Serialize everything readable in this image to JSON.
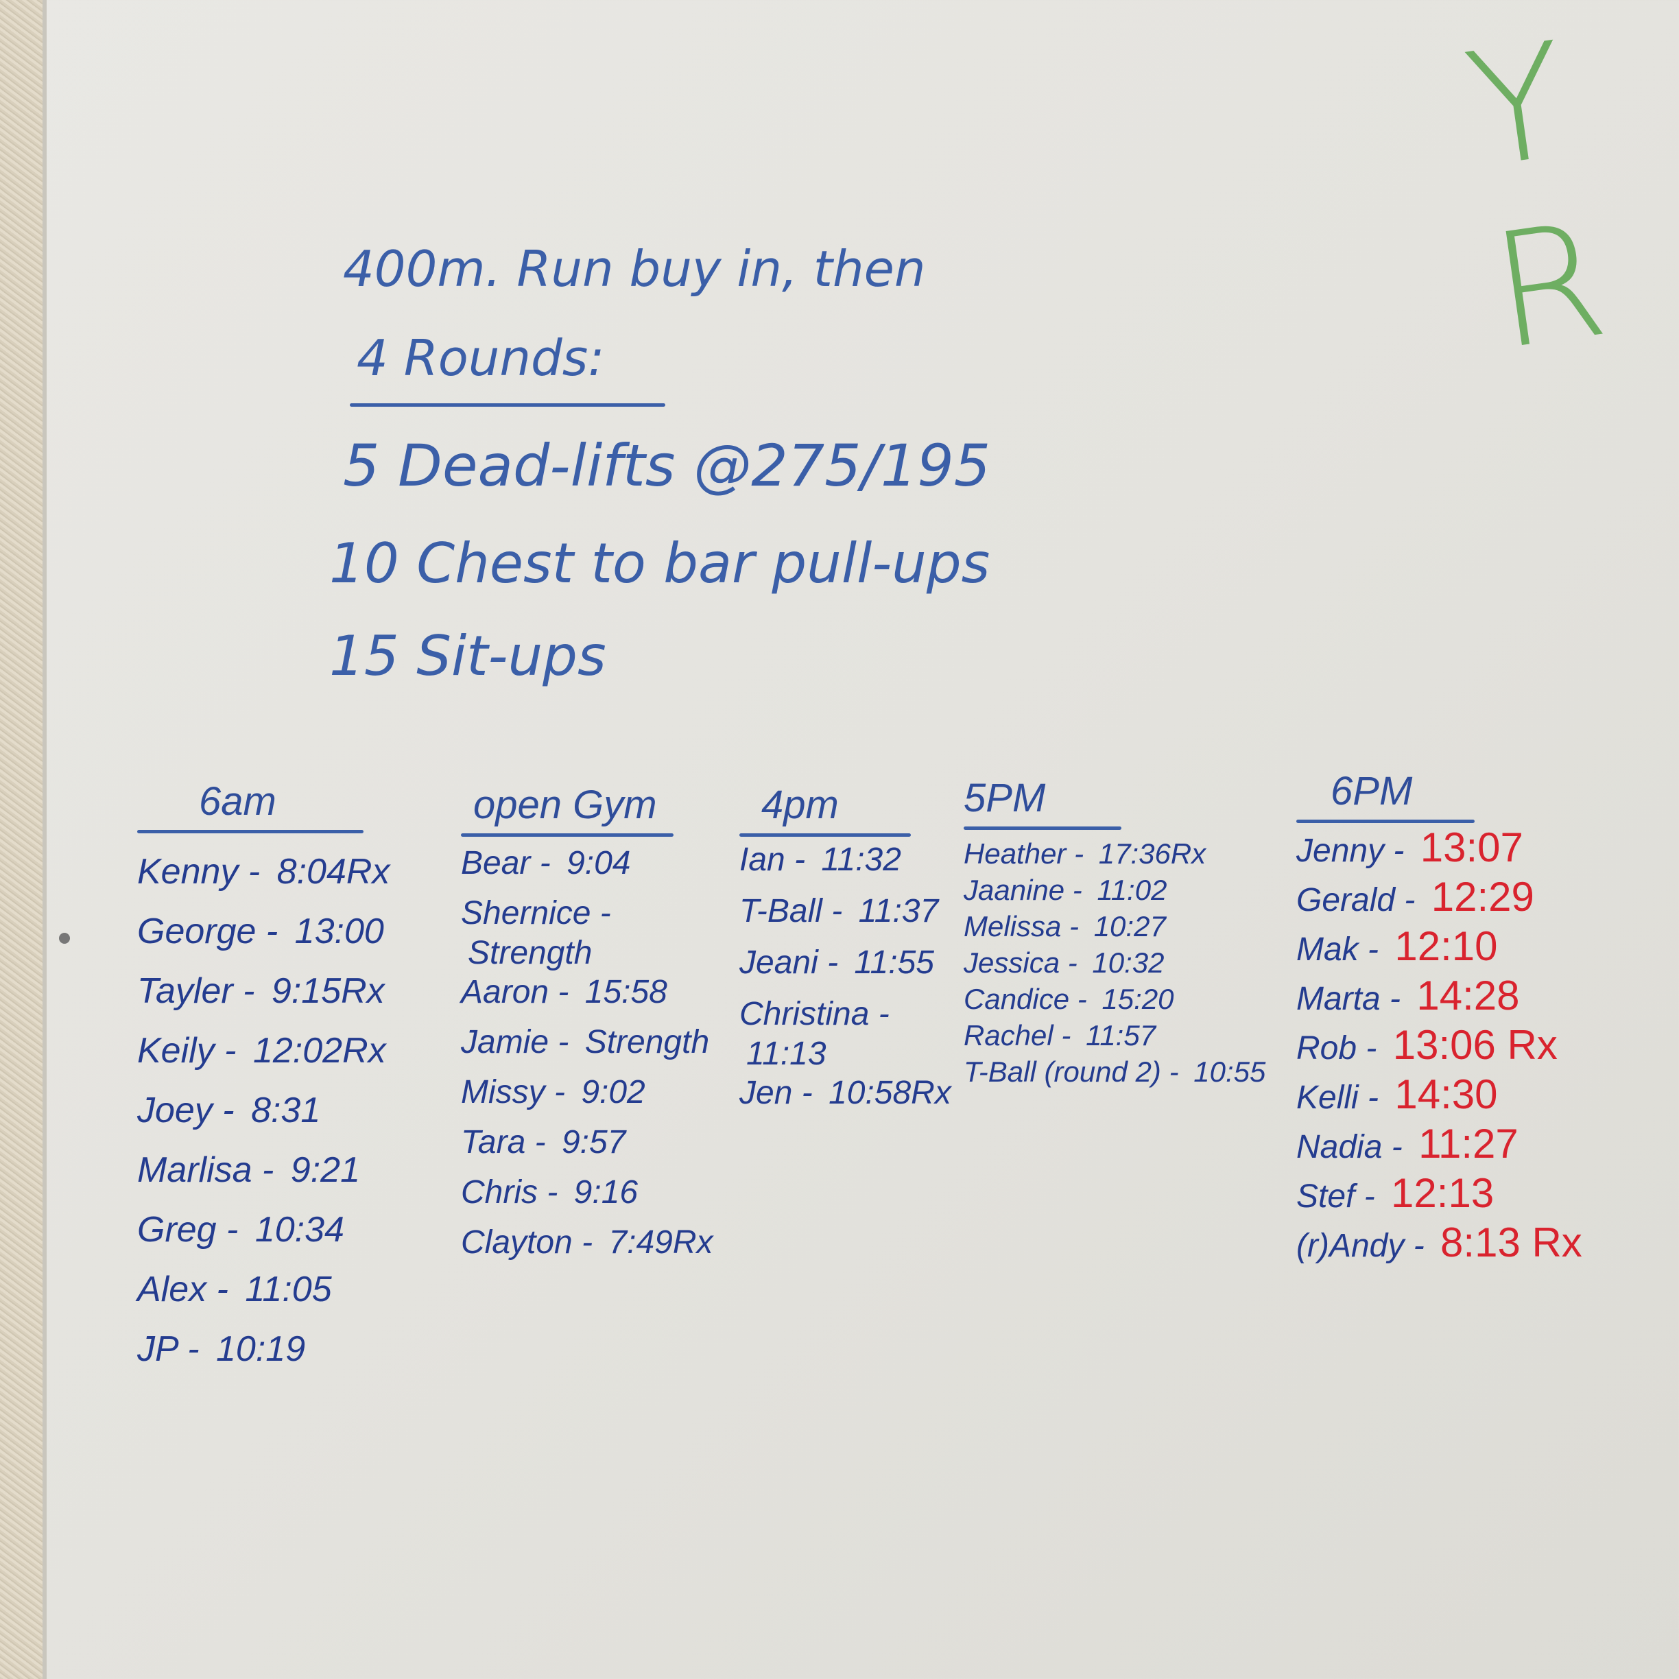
{
  "board_corner_text": "Y R",
  "workout": {
    "lines": [
      "400m. Run buy in, then",
      "4 Rounds:",
      "5 Dead-lifts @275/195",
      "10 Chest to bar pull-ups",
      "15 Sit-ups"
    ]
  },
  "colors": {
    "marker_blue": "#243c8f",
    "marker_red": "#d9232e",
    "marker_green": "#5aa54d"
  },
  "columns": [
    {
      "header": "6am",
      "entries": [
        {
          "name": "Kenny -",
          "time": "8:04Rx"
        },
        {
          "name": "George -",
          "time": "13:00"
        },
        {
          "name": "Tayler -",
          "time": "9:15Rx"
        },
        {
          "name": "Keily -",
          "time": "12:02Rx"
        },
        {
          "name": "Joey -",
          "time": "8:31"
        },
        {
          "name": "Marlisa -",
          "time": "9:21"
        },
        {
          "name": "Greg -",
          "time": "10:34"
        },
        {
          "name": "Alex -",
          "time": "11:05"
        },
        {
          "name": "JP -",
          "time": "10:19"
        }
      ]
    },
    {
      "header": "open Gym",
      "entries": [
        {
          "name": "Bear -",
          "time": "9:04"
        },
        {
          "name": "Shernice -",
          "time": "Strength"
        },
        {
          "name": "Aaron -",
          "time": "15:58"
        },
        {
          "name": "Jamie -",
          "time": "Strength"
        },
        {
          "name": "Missy -",
          "time": "9:02"
        },
        {
          "name": "Tara -",
          "time": "9:57"
        },
        {
          "name": "Chris -",
          "time": "9:16"
        },
        {
          "name": "Clayton -",
          "time": "7:49Rx"
        }
      ]
    },
    {
      "header": "4pm",
      "entries": [
        {
          "name": "Ian -",
          "time": "11:32"
        },
        {
          "name": "T-Ball -",
          "time": "11:37"
        },
        {
          "name": "Jeani -",
          "time": "11:55"
        },
        {
          "name": "Christina -",
          "time": "11:13"
        },
        {
          "name": "Jen -",
          "time": "10:58Rx"
        }
      ]
    },
    {
      "header": "5PM",
      "entries": [
        {
          "name": "Heather -",
          "time": "17:36Rx"
        },
        {
          "name": "Jaanine -",
          "time": "11:02"
        },
        {
          "name": "Melissa -",
          "time": "10:27"
        },
        {
          "name": "Jessica -",
          "time": "10:32"
        },
        {
          "name": "Candice -",
          "time": "15:20"
        },
        {
          "name": "Rachel -",
          "time": "11:57"
        },
        {
          "name": "T-Ball (round 2) -",
          "time": "10:55"
        }
      ]
    },
    {
      "header": "6PM",
      "entries": [
        {
          "name": "Jenny -",
          "time": "13:07"
        },
        {
          "name": "Gerald -",
          "time": "12:29"
        },
        {
          "name": "Mak -",
          "time": "12:10"
        },
        {
          "name": "Marta -",
          "time": "14:28"
        },
        {
          "name": "Rob -",
          "time": "13:06 Rx"
        },
        {
          "name": "Kelli -",
          "time": "14:30"
        },
        {
          "name": "Nadia -",
          "time": "11:27"
        },
        {
          "name": "Stef -",
          "time": "12:13"
        },
        {
          "name": "(r)Andy -",
          "time": "8:13 Rx"
        }
      ]
    }
  ]
}
